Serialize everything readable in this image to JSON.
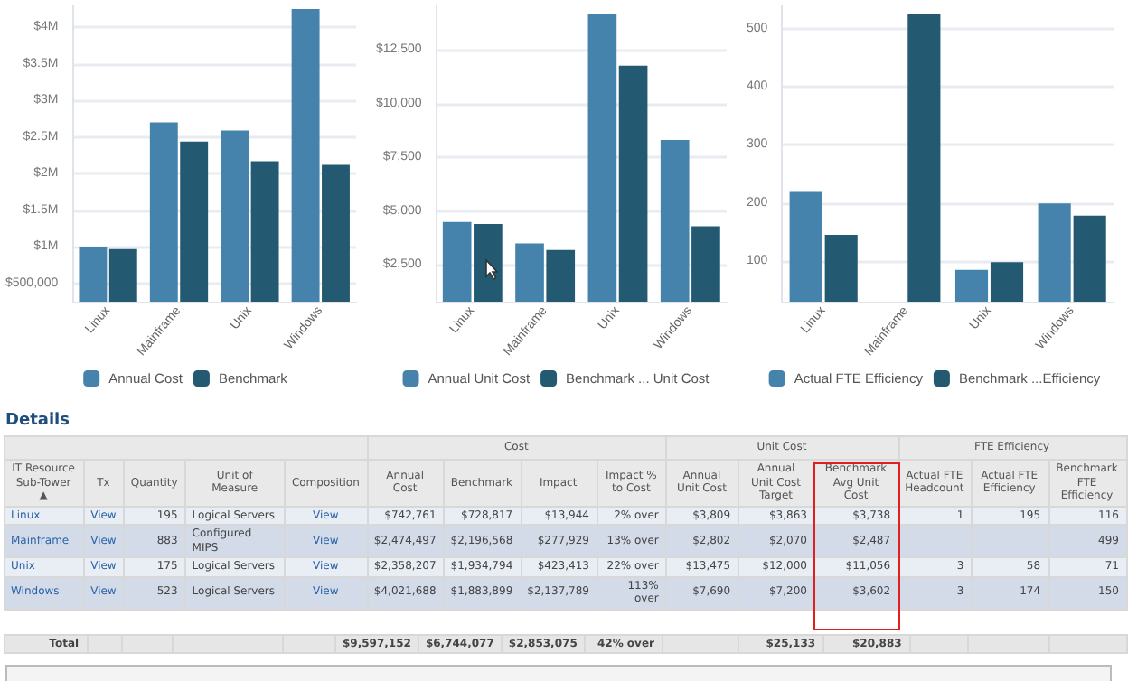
{
  "chart_data": [
    {
      "type": "bar",
      "categories": [
        "Linux",
        "Mainframe",
        "Unix",
        "Windows"
      ],
      "series": [
        {
          "name": "Annual Cost",
          "color": "#4583ad",
          "values": [
            990000,
            2700000,
            2590000,
            4250000
          ]
        },
        {
          "name": "Benchmark",
          "color": "#235a72",
          "values": [
            970000,
            2440000,
            2170000,
            2120000
          ]
        }
      ],
      "ylim": [
        250000,
        4300000
      ],
      "yticks": [
        {
          "value": 500000,
          "label": "$500,000"
        },
        {
          "value": 1000000,
          "label": "$1M"
        },
        {
          "value": 1500000,
          "label": "$1.5M"
        },
        {
          "value": 2000000,
          "label": "$2M"
        },
        {
          "value": 2500000,
          "label": "$2.5M"
        },
        {
          "value": 3000000,
          "label": "$3M"
        },
        {
          "value": 3500000,
          "label": "$3.5M"
        },
        {
          "value": 4000000,
          "label": "$4M"
        }
      ],
      "grid": "y",
      "legend": "bottom"
    },
    {
      "type": "bar",
      "categories": [
        "Linux",
        "Mainframe",
        "Unix",
        "Windows"
      ],
      "series": [
        {
          "name": "Annual Unit Cost",
          "color": "#4583ad",
          "values": [
            4500,
            3500,
            14150,
            8300
          ]
        },
        {
          "name": "Benchmark ... Unit Cost",
          "color": "#235a72",
          "values": [
            4400,
            3200,
            11750,
            4300
          ]
        }
      ],
      "ylim": [
        800,
        14550
      ],
      "yticks": [
        {
          "value": 2500,
          "label": "$2,500"
        },
        {
          "value": 5000,
          "label": "$5,000"
        },
        {
          "value": 7500,
          "label": "$7,500"
        },
        {
          "value": 10000,
          "label": "$10,000"
        },
        {
          "value": 12500,
          "label": "$12,500"
        }
      ],
      "grid": "y",
      "legend": "bottom"
    },
    {
      "type": "bar",
      "categories": [
        "Linux",
        "Mainframe",
        "Unix",
        "Windows"
      ],
      "series": [
        {
          "name": "Actual FTE Efficiency",
          "color": "#4583ad",
          "values": [
            219,
            null,
            85,
            199
          ]
        },
        {
          "name": "Benchmark ...Efficiency",
          "color": "#235a72",
          "values": [
            145,
            525,
            98,
            178
          ]
        }
      ],
      "ylim": [
        30,
        540
      ],
      "yticks": [
        100,
        200,
        300,
        400,
        500
      ],
      "grid": "y",
      "legend": "bottom"
    },
    {
      "type": "other",
      "title": "Details",
      "annotations": [
        "Cost",
        "Unit Cost",
        "FTE Efficiency"
      ],
      "categories": [
        "IT Resource Sub-Tower ▲",
        "Tx",
        "Quantity",
        "Unit of Measure",
        "Composition",
        "Annual Cost",
        "Benchmark",
        "Impact",
        "Impact % to Cost",
        "Annual Unit Cost",
        "Annual Unit Cost Target",
        "Benchmark Avg Unit Cost",
        "Actual FTE Headcount",
        "Actual FTE Efficiency",
        "Benchmark FTE Efficiency"
      ],
      "cell_labels": [
        [
          "Linux",
          "View",
          "195",
          "Logical Servers",
          "View",
          "$742,761",
          "$728,817",
          "$13,944",
          "2% over",
          "$3,809",
          "$3,863",
          "$3,738",
          "1",
          "195",
          "116"
        ],
        [
          "Mainframe",
          "View",
          "883",
          "Configured MIPS",
          "View",
          "$2,474,497",
          "$2,196,568",
          "$277,929",
          "13% over",
          "$2,802",
          "$2,070",
          "$2,487",
          null,
          null,
          "499"
        ],
        [
          "Unix",
          "View",
          "175",
          "Logical Servers",
          "View",
          "$2,358,207",
          "$1,934,794",
          "$423,413",
          "22% over",
          "$13,475",
          "$12,000",
          "$11,056",
          "3",
          "58",
          "71"
        ],
        [
          "Windows",
          "View",
          "523",
          "Logical Servers",
          "View",
          "$4,021,688",
          "$1,883,899",
          "$2,137,789",
          "113% over",
          "$7,690",
          "$7,200",
          "$3,602",
          "3",
          "174",
          "150"
        ],
        [
          "Total",
          null,
          null,
          null,
          null,
          "$9,597,152",
          "$6,744,077",
          "$2,853,075",
          "42% over",
          null,
          "$25,133",
          "$20,883",
          null,
          null,
          null
        ]
      ]
    }
  ]
}
